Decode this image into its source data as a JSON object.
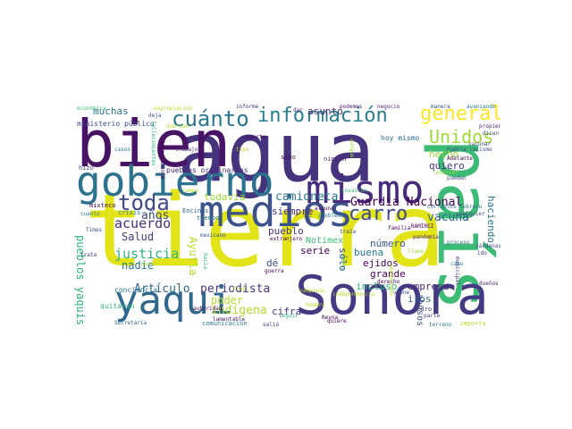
{
  "words": [
    {
      "text": "tierra",
      "color": "#e2e418"
    },
    {
      "text": "agua",
      "color": "#46337e"
    },
    {
      "text": "bien",
      "color": "#471365"
    },
    {
      "text": "país",
      "color": "#3bbb75"
    },
    {
      "text": "Sonora",
      "color": "#443983"
    },
    {
      "text": "yaqui",
      "color": "#31688e"
    },
    {
      "text": "medios",
      "color": "#3b528b"
    },
    {
      "text": "gobierno",
      "color": "#2c728e"
    },
    {
      "text": "mismo",
      "color": "#472d7b"
    },
    {
      "text": "información",
      "color": "#277f8e"
    },
    {
      "text": "cuánto",
      "color": "#2a788e"
    },
    {
      "text": "general",
      "color": "#fde725"
    },
    {
      "text": "Unidos",
      "color": "#a0da39"
    },
    {
      "text": "toda",
      "color": "#3e4989"
    },
    {
      "text": "carro",
      "color": "#3e4989"
    },
    {
      "text": "Guardia Nacional",
      "color": "#440154"
    },
    {
      "text": "camioneta",
      "color": "#2a788e"
    },
    {
      "text": "vacuna",
      "color": "#33638d"
    },
    {
      "text": "acuerdo",
      "color": "#46307e"
    },
    {
      "text": "justicia",
      "color": "#2fb47c"
    },
    {
      "text": "años",
      "color": "#3e4989"
    },
    {
      "text": "Salud",
      "color": "#443983"
    },
    {
      "text": "nadie",
      "color": "#2a788e"
    },
    {
      "text": "periodista",
      "color": "#46337e"
    },
    {
      "text": "indígena",
      "color": "#b5de2b"
    },
    {
      "text": "poder",
      "color": "#b5de2b"
    },
    {
      "text": "Artículo",
      "color": "#31688e"
    },
    {
      "text": "Ayutla",
      "color": "#b5de2b"
    },
    {
      "text": "pueblos yaquis",
      "color": "#2fb47c"
    },
    {
      "text": "muchas",
      "color": "#2c728e"
    },
    {
      "text": "asunto",
      "color": "#472d7b"
    },
    {
      "text": "hecho",
      "color": "#a0da39"
    },
    {
      "text": "quiero",
      "color": "#46337e"
    },
    {
      "text": "siempre",
      "color": "#472d7b"
    },
    {
      "text": "todavía",
      "color": "#a0da39"
    },
    {
      "text": "número",
      "color": "#3b528b"
    },
    {
      "text": "buena",
      "color": "#287c8e"
    },
    {
      "text": "ejidos",
      "color": "#440154"
    },
    {
      "text": "grande",
      "color": "#440154"
    },
    {
      "text": "serie",
      "color": "#440154"
    },
    {
      "text": "Notimex",
      "color": "#3bbb75"
    },
    {
      "text": "pueblo",
      "color": "#46337e"
    },
    {
      "text": "sólo",
      "color": "#3e4989"
    },
    {
      "text": "cifra",
      "color": "#46337e"
    },
    {
      "text": "dé",
      "color": "#3e4989"
    },
    {
      "text": "incluso",
      "color": "#2fb47c"
    },
    {
      "text": "empresa",
      "color": "#482878"
    },
    {
      "text": "iros",
      "color": "#31688e"
    },
    {
      "text": "abusos",
      "color": "#3b528b"
    },
    {
      "text": "haciendo",
      "color": "#2a788e"
    },
    {
      "text": "conciencia",
      "color": "#2c728e"
    },
    {
      "text": "quitaron",
      "color": "#35b779"
    },
    {
      "text": "comunicación",
      "color": "#2a788e"
    },
    {
      "text": "ministerio público",
      "color": "#3e4989"
    },
    {
      "text": "pueblos originarios",
      "color": "#482878"
    },
    {
      "text": "hoy mismo",
      "color": "#2c728e"
    },
    {
      "text": "hizo",
      "color": "#3e4989"
    },
    {
      "text": "mixteco",
      "color": "#440154"
    },
    {
      "text": "crisis",
      "color": "#2a788e"
    },
    {
      "text": "Encinas",
      "color": "#31688e"
    },
    {
      "text": "tiempo",
      "color": "#2c728e"
    },
    {
      "text": "ningún",
      "color": "#482878"
    },
    {
      "text": "sino",
      "color": "#440154"
    },
    {
      "text": "reporte",
      "color": "#440154"
    },
    {
      "text": "lamentable",
      "color": "#471365"
    },
    {
      "text": "vivienda",
      "color": "#3e4989"
    },
    {
      "text": "relaciones",
      "color": "#3b528b"
    },
    {
      "text": "informe",
      "color": "#46337e"
    },
    {
      "text": "dar",
      "color": "#482878"
    },
    {
      "text": "podemos",
      "color": "#471365"
    },
    {
      "text": "negocio",
      "color": "#481f70"
    },
    {
      "text": "manera",
      "color": "#3e4989"
    },
    {
      "text": "avanzando",
      "color": "#2a788e"
    },
    {
      "text": "económica",
      "color": "#3bbb75"
    },
    {
      "text": "expropiación",
      "color": "#b5de2b"
    },
    {
      "text": "deja",
      "color": "#3b528b"
    },
    {
      "text": "propiedad",
      "color": "#482878"
    },
    {
      "text": "dicen",
      "color": "#3e4989"
    },
    {
      "text": "Puebla racismo",
      "color": "#3e4989"
    },
    {
      "text": "Adelante",
      "color": "#440154"
    },
    {
      "text": "resolver",
      "color": "#a0da39"
    },
    {
      "text": "pueden",
      "color": "#3e4989"
    },
    {
      "text": "corruptos febrero",
      "color": "#31688e"
    },
    {
      "text": "cualquier",
      "color": "#3e4989"
    },
    {
      "text": "familia",
      "color": "#440154"
    },
    {
      "text": "pandemia",
      "color": "#482878"
    },
    {
      "text": "proceso",
      "color": "#31688e"
    },
    {
      "text": "llama",
      "color": "#a0da39"
    },
    {
      "text": "RAMÍREZ",
      "color": "#440154"
    },
    {
      "text": "cabo",
      "color": "#2a788e"
    },
    {
      "text": "Pedro",
      "color": "#46337e"
    },
    {
      "text": "parte",
      "color": "#46337e"
    },
    {
      "text": "terreno",
      "color": "#2a788e"
    },
    {
      "text": "importa",
      "color": "#b5de2b"
    },
    {
      "text": "derecho",
      "color": "#440154"
    },
    {
      "text": "viene",
      "color": "#3e4989"
    },
    {
      "text": "traía",
      "color": "#3e4989"
    },
    {
      "text": "guerra",
      "color": "#440154"
    },
    {
      "text": "Reyna",
      "color": "#440154"
    },
    {
      "text": "seguir",
      "color": "#2fb47c"
    },
    {
      "text": "independencia",
      "color": "#b5de2b"
    },
    {
      "text": "Secretaría",
      "color": "#31688e"
    },
    {
      "text": "último",
      "color": "#440154"
    },
    {
      "text": "presa",
      "color": "#440154"
    },
    {
      "text": "ahorita",
      "color": "#3e4989"
    },
    {
      "text": "autoridades",
      "color": "#440154"
    },
    {
      "text": "cuanto",
      "color": "#2a788e"
    },
    {
      "text": "trata",
      "color": "#46337e"
    },
    {
      "text": "Times",
      "color": "#3e4989"
    },
    {
      "text": "quiere",
      "color": "#440154"
    },
    {
      "text": "gente",
      "color": "#2fb47c"
    },
    {
      "text": "hombre",
      "color": "#b5de2b"
    },
    {
      "text": "alguna",
      "color": "#440154"
    },
    {
      "text": "problema",
      "color": "#2a788e"
    },
    {
      "text": "invasión",
      "color": "#3bbb75"
    },
    {
      "text": "extranjero",
      "color": "#440154"
    },
    {
      "text": "final",
      "color": "#b5de2b"
    },
    {
      "text": "punto",
      "color": "#b5de2b"
    },
    {
      "text": "casos",
      "color": "#2a788e"
    },
    {
      "text": "trabajo",
      "color": "#481f70"
    },
    {
      "text": "Departamento",
      "color": "#440154"
    },
    {
      "text": "campo",
      "color": "#b5de2b"
    },
    {
      "text": "hacia",
      "color": "#2fb47c"
    },
    {
      "text": "municipal",
      "color": "#46337e"
    },
    {
      "text": "cárdenas",
      "color": "#3e4989"
    },
    {
      "text": "ido",
      "color": "#46337e"
    },
    {
      "text": "dueños",
      "color": "#482878"
    },
    {
      "text": "mexicano",
      "color": "#3b528b"
    },
    {
      "text": "autoridad",
      "color": "#440154"
    },
    {
      "text": "salió",
      "color": "#46337e"
    },
    {
      "text": "sumquana",
      "color": "#b5de2b"
    },
    {
      "text": "mejor",
      "color": "#46337e"
    },
    {
      "text": "querían",
      "color": "#b5de2b"
    },
    {
      "text": "aunque",
      "color": "#a0da39"
    },
    {
      "text": "fallecimientos",
      "color": "#2fb47c"
    },
    {
      "text": "conservado",
      "color": "#b5de2b"
    },
    {
      "text": "tipo",
      "color": "#b5de2b"
    },
    {
      "text": "vacunar",
      "color": "#3e4989"
    }
  ]
}
